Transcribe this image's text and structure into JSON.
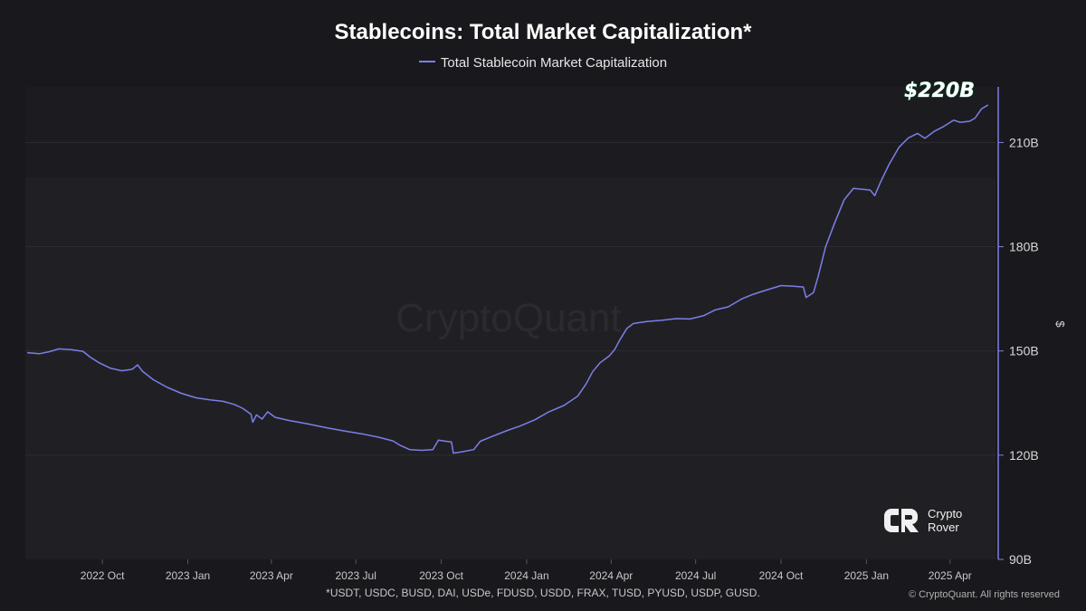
{
  "title": "Stablecoins: Total Market Capitalization*",
  "legend": {
    "label": "Total Stablecoin Market Capitalization",
    "color": "#7b7fe8"
  },
  "watermark": "CryptoQuant",
  "annotation": "$220B",
  "footnote": "*USDT, USDC, BUSD, DAI, USDe, FDUSD, USDD, FRAX, TUSD, PYUSD, USDP, GUSD.",
  "copyright": "© CryptoQuant. All rights reserved",
  "brand": {
    "line1": "Crypto",
    "line2": "Rover"
  },
  "colors": {
    "background": "#19191d",
    "plot_background": "#202024",
    "line": "#7b7fe8",
    "annotation_glow": "#2fd37a",
    "grid": "#2b2b31"
  },
  "chart_data": {
    "type": "line",
    "title": "Stablecoins: Total Market Capitalization*",
    "xlabel": "",
    "ylabel": "$",
    "x_tick_labels": [
      "2022 Oct",
      "2023 Jan",
      "2023 Apr",
      "2023 Jul",
      "2023 Oct",
      "2024 Jan",
      "2024 Apr",
      "2024 Jul",
      "2024 Oct",
      "2025 Jan",
      "2025 Apr"
    ],
    "y_tick_labels": [
      "90B",
      "120B",
      "150B",
      "180B",
      "210B"
    ],
    "y_ticks": [
      90,
      120,
      150,
      180,
      210
    ],
    "ylim": [
      90,
      226
    ],
    "y_unit": "B USD",
    "xlim": [
      "2022-07-10",
      "2025-05-20"
    ],
    "grid": true,
    "legend_position": "top-center",
    "series": [
      {
        "name": "Total Stablecoin Market Capitalization",
        "points": [
          [
            "2022-07-12",
            149.5
          ],
          [
            "2022-07-25",
            149.2
          ],
          [
            "2022-08-05",
            149.8
          ],
          [
            "2022-08-15",
            150.6
          ],
          [
            "2022-08-28",
            150.4
          ],
          [
            "2022-09-10",
            149.9
          ],
          [
            "2022-09-18",
            148.2
          ],
          [
            "2022-09-28",
            146.5
          ],
          [
            "2022-10-10",
            145.0
          ],
          [
            "2022-10-22",
            144.3
          ],
          [
            "2022-11-02",
            144.7
          ],
          [
            "2022-11-08",
            146.0
          ],
          [
            "2022-11-13",
            144.2
          ],
          [
            "2022-11-25",
            141.7
          ],
          [
            "2022-12-10",
            139.5
          ],
          [
            "2022-12-25",
            137.8
          ],
          [
            "2023-01-10",
            136.5
          ],
          [
            "2023-01-25",
            135.9
          ],
          [
            "2023-02-08",
            135.5
          ],
          [
            "2023-02-20",
            134.6
          ],
          [
            "2023-03-01",
            133.5
          ],
          [
            "2023-03-10",
            131.8
          ],
          [
            "2023-03-12",
            129.5
          ],
          [
            "2023-03-16",
            131.6
          ],
          [
            "2023-03-22",
            130.4
          ],
          [
            "2023-03-28",
            132.5
          ],
          [
            "2023-04-05",
            130.9
          ],
          [
            "2023-04-20",
            130.0
          ],
          [
            "2023-05-10",
            129.0
          ],
          [
            "2023-06-01",
            127.8
          ],
          [
            "2023-06-20",
            126.9
          ],
          [
            "2023-07-10",
            126.0
          ],
          [
            "2023-07-25",
            125.2
          ],
          [
            "2023-08-10",
            124.1
          ],
          [
            "2023-08-18",
            122.8
          ],
          [
            "2023-08-28",
            121.6
          ],
          [
            "2023-09-10",
            121.4
          ],
          [
            "2023-09-22",
            121.6
          ],
          [
            "2023-09-28",
            124.3
          ],
          [
            "2023-10-06",
            124.0
          ],
          [
            "2023-10-12",
            123.8
          ],
          [
            "2023-10-14",
            120.6
          ],
          [
            "2023-10-22",
            120.9
          ],
          [
            "2023-11-05",
            121.6
          ],
          [
            "2023-11-12",
            124.0
          ],
          [
            "2023-11-25",
            125.4
          ],
          [
            "2023-12-10",
            127.0
          ],
          [
            "2023-12-25",
            128.4
          ],
          [
            "2024-01-10",
            130.2
          ],
          [
            "2024-01-25",
            132.5
          ],
          [
            "2024-02-10",
            134.3
          ],
          [
            "2024-02-25",
            137.0
          ],
          [
            "2024-03-05",
            140.5
          ],
          [
            "2024-03-12",
            144.0
          ],
          [
            "2024-03-20",
            146.6
          ],
          [
            "2024-03-30",
            148.6
          ],
          [
            "2024-04-05",
            150.5
          ],
          [
            "2024-04-10",
            153.0
          ],
          [
            "2024-04-18",
            156.5
          ],
          [
            "2024-04-25",
            157.9
          ],
          [
            "2024-05-10",
            158.5
          ],
          [
            "2024-05-25",
            158.8
          ],
          [
            "2024-06-10",
            159.3
          ],
          [
            "2024-06-25",
            159.2
          ],
          [
            "2024-07-10",
            160.2
          ],
          [
            "2024-07-22",
            161.8
          ],
          [
            "2024-08-05",
            162.7
          ],
          [
            "2024-08-20",
            165.0
          ],
          [
            "2024-09-01",
            166.3
          ],
          [
            "2024-09-15",
            167.5
          ],
          [
            "2024-10-01",
            168.8
          ],
          [
            "2024-10-15",
            168.6
          ],
          [
            "2024-10-25",
            168.4
          ],
          [
            "2024-10-28",
            165.4
          ],
          [
            "2024-11-05",
            166.8
          ],
          [
            "2024-11-10",
            171.5
          ],
          [
            "2024-11-18",
            180.0
          ],
          [
            "2024-11-28",
            187.0
          ],
          [
            "2024-12-08",
            193.5
          ],
          [
            "2024-12-18",
            196.8
          ],
          [
            "2025-01-05",
            196.3
          ],
          [
            "2025-01-10",
            194.7
          ],
          [
            "2025-01-16",
            198.5
          ],
          [
            "2025-01-25",
            203.5
          ],
          [
            "2025-02-05",
            208.6
          ],
          [
            "2025-02-15",
            211.3
          ],
          [
            "2025-02-25",
            212.6
          ],
          [
            "2025-03-05",
            211.2
          ],
          [
            "2025-03-15",
            213.2
          ],
          [
            "2025-03-25",
            214.6
          ],
          [
            "2025-04-05",
            216.4
          ],
          [
            "2025-04-12",
            215.8
          ],
          [
            "2025-04-22",
            216.1
          ],
          [
            "2025-04-28",
            217.0
          ],
          [
            "2025-05-05",
            219.7
          ],
          [
            "2025-05-12",
            220.8
          ]
        ]
      }
    ]
  }
}
